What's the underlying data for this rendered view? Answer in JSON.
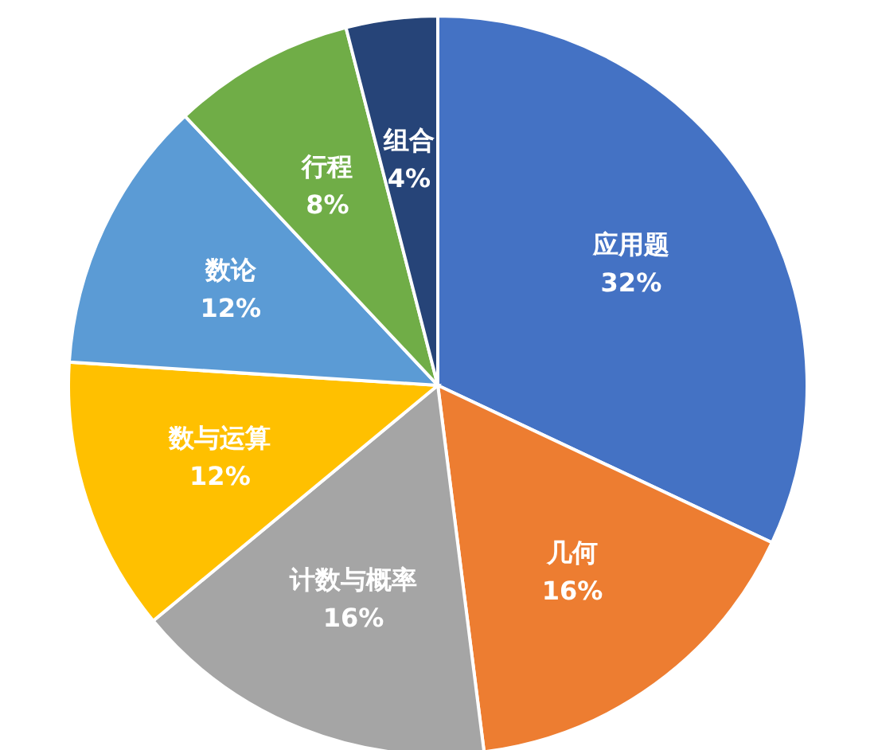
{
  "chart_data": {
    "type": "pie",
    "categories": [
      "应用题",
      "几何",
      "计数与概率",
      "数与运算",
      "数论",
      "行程",
      "组合"
    ],
    "values": [
      32,
      16,
      16,
      12,
      12,
      8,
      4
    ],
    "value_labels": [
      "32%",
      "16%",
      "16%",
      "12%",
      "12%",
      "8%",
      "4%"
    ],
    "colors": [
      "#4472c4",
      "#ed7d31",
      "#a5a5a5",
      "#ffc000",
      "#5b9bd5",
      "#70ad47",
      "#264478"
    ],
    "legend": false
  }
}
